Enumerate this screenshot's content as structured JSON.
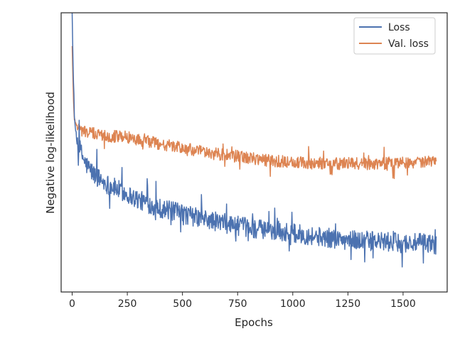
{
  "chart_data": {
    "type": "line",
    "title": "",
    "xlabel": "Epochs",
    "ylabel": "Negative log-likelihood",
    "xlim": [
      -50,
      1700
    ],
    "ylim": [
      0,
      1
    ],
    "x_ticks": [
      0,
      250,
      500,
      750,
      1000,
      1250,
      1500
    ],
    "x_tick_labels": [
      "0",
      "250",
      "500",
      "750",
      "1000",
      "1250",
      "1500"
    ],
    "y_tick_labels_shown": false,
    "grid": false,
    "legend": {
      "position": "top-right",
      "entries": [
        "Loss",
        "Val. loss"
      ]
    },
    "series": [
      {
        "name": "Loss",
        "color": "#4c72b0",
        "x": [
          0,
          5,
          10,
          20,
          40,
          60,
          100,
          150,
          200,
          250,
          300,
          350,
          400,
          450,
          500,
          600,
          700,
          800,
          900,
          1000,
          1100,
          1200,
          1300,
          1400,
          1500,
          1600,
          1650
        ],
        "values": [
          0.99,
          0.78,
          0.62,
          0.55,
          0.5,
          0.46,
          0.42,
          0.39,
          0.37,
          0.35,
          0.33,
          0.315,
          0.3,
          0.29,
          0.28,
          0.26,
          0.245,
          0.23,
          0.22,
          0.21,
          0.2,
          0.19,
          0.185,
          0.18,
          0.175,
          0.175,
          0.17
        ],
        "noise": 0.035
      },
      {
        "name": "Val. loss",
        "color": "#dd8452",
        "x": [
          0,
          5,
          10,
          20,
          40,
          80,
          150,
          250,
          300,
          400,
          500,
          600,
          700,
          800,
          900,
          1000,
          1100,
          1200,
          1300,
          1400,
          1500,
          1600,
          1650
        ],
        "values": [
          0.88,
          0.7,
          0.62,
          0.6,
          0.58,
          0.57,
          0.56,
          0.555,
          0.545,
          0.53,
          0.515,
          0.5,
          0.49,
          0.48,
          0.47,
          0.465,
          0.46,
          0.46,
          0.46,
          0.46,
          0.465,
          0.465,
          0.465
        ],
        "noise": 0.022
      }
    ]
  }
}
